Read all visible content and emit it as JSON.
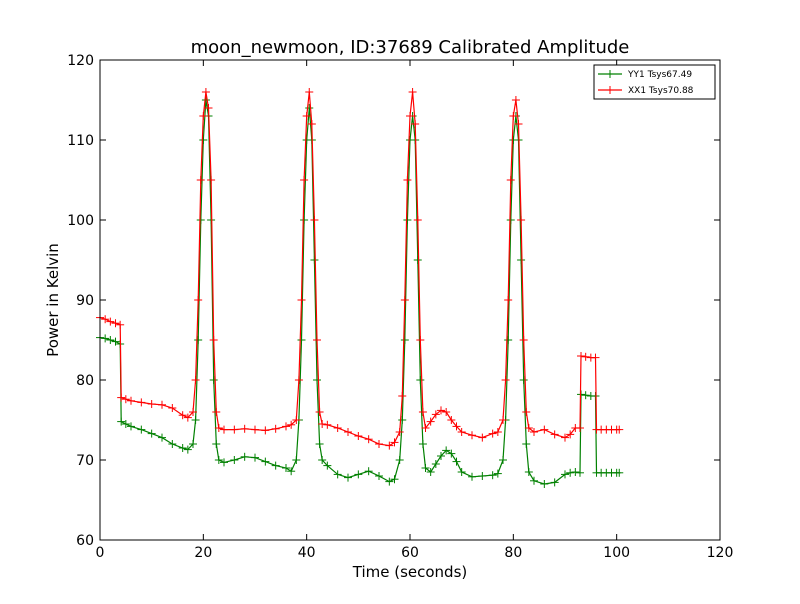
{
  "chart_data": {
    "type": "line",
    "title": "moon_newmoon, ID:37689 Calibrated Amplitude",
    "xlabel": "Time (seconds)",
    "ylabel": "Power in Kelvin",
    "xlim": [
      0,
      120
    ],
    "ylim": [
      60,
      120
    ],
    "xticks": [
      0,
      20,
      40,
      60,
      80,
      100,
      120
    ],
    "yticks": [
      60,
      70,
      80,
      90,
      100,
      110,
      120
    ],
    "grid": false,
    "legend_position": "top-right",
    "marker": "plus",
    "series": [
      {
        "name": "YY1 Tsys67.49",
        "color": "#008000",
        "x": [
          0,
          1,
          2,
          3,
          3.9,
          4.1,
          5,
          6,
          8,
          10,
          12,
          14,
          16,
          17,
          18,
          18.5,
          19,
          19.5,
          20,
          20.5,
          21,
          21.5,
          22,
          22.5,
          23,
          24,
          26,
          28,
          30,
          32,
          34,
          36,
          37,
          38,
          38.5,
          39,
          39.5,
          40,
          40.5,
          41,
          41.5,
          42,
          42.5,
          43,
          44,
          46,
          48,
          50,
          52,
          54,
          56,
          57,
          58,
          58.5,
          59,
          59.5,
          60,
          60.5,
          61,
          61.5,
          62,
          62.5,
          63,
          64,
          65,
          66,
          67,
          68,
          69,
          70,
          72,
          74,
          76,
          77,
          78,
          78.5,
          79,
          79.5,
          80,
          80.5,
          81,
          81.5,
          82,
          82.5,
          83,
          84,
          86,
          88,
          90,
          91,
          92,
          92.9,
          93.1,
          94,
          95,
          95.9,
          96.1,
          97,
          98,
          99,
          100,
          100.5
        ],
        "values": [
          85.3,
          85.2,
          85.0,
          84.8,
          84.5,
          74.8,
          74.5,
          74.2,
          73.8,
          73.3,
          72.8,
          72.0,
          71.5,
          71.3,
          72.0,
          75.0,
          85.0,
          100.0,
          110.0,
          115.0,
          113.0,
          100.0,
          80.0,
          72.0,
          70.0,
          69.7,
          70.0,
          70.4,
          70.3,
          69.8,
          69.3,
          69.0,
          68.6,
          70.0,
          75.0,
          85.0,
          100.0,
          110.0,
          114.0,
          110.0,
          95.0,
          80.0,
          72.0,
          70.0,
          69.3,
          68.2,
          67.8,
          68.2,
          68.6,
          68.0,
          67.3,
          67.6,
          70.0,
          75.0,
          85.0,
          100.0,
          110.0,
          113.0,
          110.0,
          95.0,
          80.0,
          72.0,
          69.0,
          68.5,
          69.5,
          70.5,
          71.2,
          70.8,
          69.8,
          68.5,
          67.9,
          68.0,
          68.1,
          68.3,
          70.0,
          75.0,
          85.0,
          100.0,
          110.0,
          113.0,
          110.0,
          95.0,
          80.0,
          72.0,
          68.5,
          67.4,
          67.0,
          67.2,
          68.2,
          68.4,
          68.5,
          68.4,
          78.2,
          78.1,
          78.0,
          78.0,
          68.4,
          68.4,
          68.4,
          68.4,
          68.4,
          68.4
        ]
      },
      {
        "name": "XX1 Tsys70.88",
        "color": "#ff0000",
        "x": [
          0,
          1,
          2,
          3,
          3.9,
          4.1,
          5,
          6,
          8,
          10,
          12,
          14,
          16,
          17,
          18,
          18.5,
          19,
          19.5,
          20,
          20.5,
          21,
          21.5,
          22,
          22.5,
          23,
          24,
          26,
          28,
          30,
          32,
          34,
          36,
          37,
          38,
          38.5,
          39,
          39.5,
          40,
          40.5,
          41,
          41.5,
          42,
          42.5,
          43,
          44,
          46,
          48,
          50,
          52,
          54,
          56,
          57,
          58,
          58.5,
          59,
          59.5,
          60,
          60.5,
          61,
          61.5,
          62,
          62.5,
          63,
          64,
          65,
          66,
          67,
          68,
          69,
          70,
          72,
          74,
          76,
          77,
          78,
          78.5,
          79,
          79.5,
          80,
          80.5,
          81,
          81.5,
          82,
          82.5,
          83,
          84,
          86,
          88,
          90,
          91,
          92,
          92.9,
          93.1,
          94,
          95,
          95.9,
          96.1,
          97,
          98,
          99,
          100,
          100.5
        ],
        "values": [
          87.8,
          87.6,
          87.3,
          87.1,
          86.9,
          77.8,
          77.6,
          77.4,
          77.2,
          77.0,
          76.9,
          76.5,
          75.6,
          75.3,
          76.0,
          80.0,
          90.0,
          105.0,
          113.0,
          116.0,
          114.0,
          105.0,
          85.0,
          76.0,
          74.0,
          73.8,
          73.8,
          73.9,
          73.8,
          73.7,
          73.9,
          74.2,
          74.4,
          75.0,
          80.0,
          90.0,
          105.0,
          113.0,
          116.0,
          112.0,
          100.0,
          85.0,
          76.0,
          74.5,
          74.4,
          74.0,
          73.5,
          73.0,
          72.6,
          72.0,
          71.8,
          72.2,
          73.5,
          78.0,
          90.0,
          105.0,
          113.0,
          116.0,
          112.0,
          100.0,
          85.0,
          76.0,
          74.0,
          74.8,
          75.7,
          76.2,
          76.0,
          75.0,
          74.2,
          73.5,
          73.1,
          72.8,
          73.3,
          73.5,
          75.0,
          80.0,
          90.0,
          105.0,
          113.0,
          115.0,
          112.0,
          100.0,
          85.0,
          76.0,
          74.0,
          73.5,
          73.8,
          73.2,
          72.8,
          73.2,
          74.0,
          74.0,
          83.0,
          82.9,
          82.8,
          82.8,
          73.8,
          73.8,
          73.8,
          73.8,
          73.8,
          73.8
        ]
      }
    ]
  }
}
